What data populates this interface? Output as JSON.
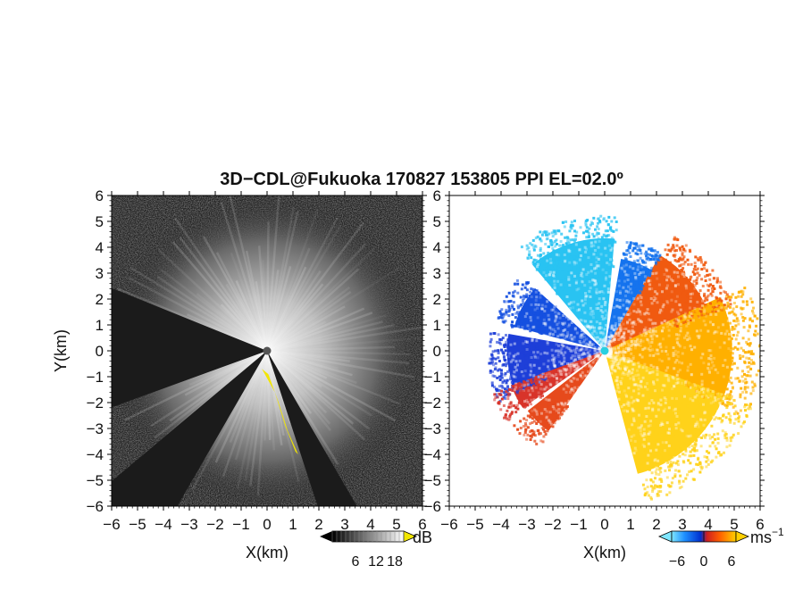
{
  "title": "3D−CDL@Fukuoka 170827 153805 PPI EL=02.0º",
  "chart_data": [
    {
      "type": "heatmap",
      "panel": "left",
      "variable": "backscatter",
      "xlabel": "X(km)",
      "ylabel": "Y(km)",
      "xlim": [
        -6,
        6
      ],
      "ylim": [
        -6,
        6
      ],
      "xticks": [
        "−6",
        "−5",
        "−4",
        "−3",
        "−2",
        "−1",
        "0",
        "1",
        "2",
        "3",
        "4",
        "5",
        "6"
      ],
      "yticks": [
        "6",
        "5",
        "4",
        "3",
        "2",
        "1",
        "0",
        "−1",
        "−2",
        "−3",
        "−4",
        "−5",
        "−6"
      ],
      "colorbar": {
        "unit": "dB",
        "ticks": [
          "6",
          "12",
          "18"
        ],
        "colormap": "grayscale",
        "range_colors": [
          "#000000",
          "#ffffff"
        ],
        "over_color": "#f2e600"
      },
      "features": {
        "blocked_sectors_deg": [
          [
            150,
            162
          ],
          [
            210,
            230
          ],
          [
            250,
            292
          ]
        ],
        "yellow_band_note": "",
        "yellow_band_points_km": [
          [
            -0.2,
            -0.7
          ],
          [
            0.3,
            -1.6
          ],
          [
            0.7,
            -2.9
          ],
          [
            1.1,
            -3.9
          ],
          [
            1.2,
            -4.0
          ],
          [
            0.8,
            -3.1
          ],
          [
            0.45,
            -2.0
          ],
          [
            0.05,
            -0.9
          ]
        ]
      }
    },
    {
      "type": "heatmap",
      "panel": "right",
      "variable": "radial_velocity",
      "xlabel": "X(km)",
      "xlim": [
        -6,
        6
      ],
      "ylim": [
        -6,
        6
      ],
      "xticks": [
        "−6",
        "−5",
        "−4",
        "−3",
        "−2",
        "−1",
        "0",
        "1",
        "2",
        "3",
        "4",
        "5",
        "6"
      ],
      "yticks": [
        "6",
        "5",
        "4",
        "3",
        "2",
        "1",
        "0",
        "−1",
        "−2",
        "−3",
        "−4",
        "−5",
        "−6"
      ],
      "colorbar": {
        "unit": "ms",
        "unit_exponent": "−1",
        "ticks": [
          "−6",
          "0",
          "6"
        ],
        "colormap": "diverging",
        "colors": [
          "#7fe6ff",
          "#1e90ff",
          "#0030d0",
          "#d02020",
          "#ff6000",
          "#ffd000"
        ]
      },
      "regions": [
        {
          "azimuth_deg": [
            -40,
            5
          ],
          "max_range_km": 5.3,
          "color": "#29c3f2"
        },
        {
          "azimuth_deg": [
            10,
            30
          ],
          "max_range_km": 4.4,
          "color": "#1573ee"
        },
        {
          "azimuth_deg": [
            -75,
            -48
          ],
          "max_range_km": 4.4,
          "color": "#1550e0"
        },
        {
          "azimuth_deg": [
            -115,
            -80
          ],
          "max_range_km": 4.6,
          "color": "#1e3fd8"
        },
        {
          "azimuth_deg": [
            -125,
            -110
          ],
          "max_range_km": 4.7,
          "color": "#d8342a"
        },
        {
          "azimuth_deg": [
            -145,
            -128
          ],
          "max_range_km": 4.6,
          "color": "#e64a1c"
        },
        {
          "azimuth_deg": [
            30,
            70
          ],
          "max_range_km": 5.2,
          "color": "#f05a10"
        },
        {
          "azimuth_deg": [
            65,
            115
          ],
          "max_range_km": 6.0,
          "color": "#ffb000"
        },
        {
          "azimuth_deg": [
            110,
            165
          ],
          "max_range_km": 6.0,
          "color": "#ffd21a"
        }
      ]
    }
  ]
}
